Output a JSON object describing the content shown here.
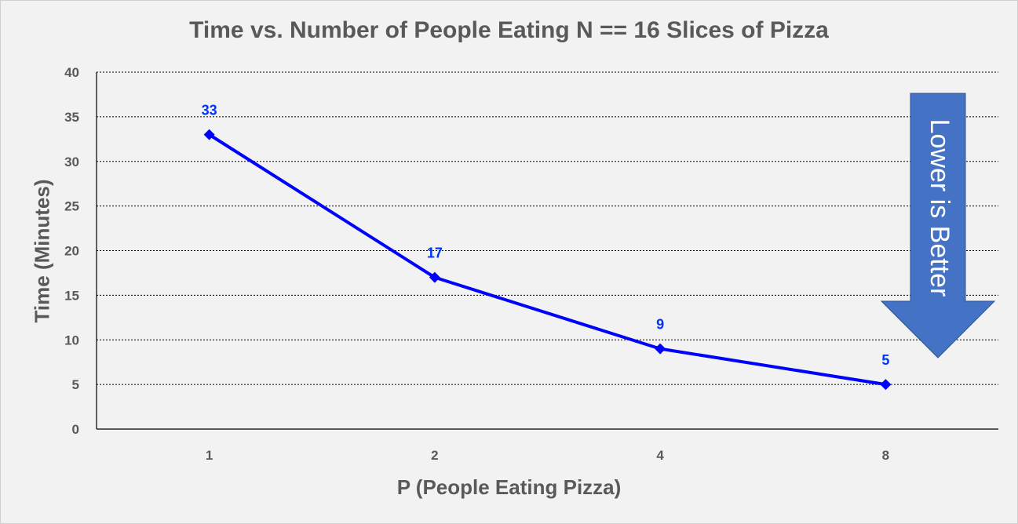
{
  "chart_data": {
    "type": "line",
    "title": "Time vs. Number of People Eating N == 16 Slices of Pizza",
    "xlabel": "P (People Eating Pizza)",
    "ylabel": "Time  (Minutes)",
    "categories": [
      "1",
      "2",
      "4",
      "8"
    ],
    "series": [
      {
        "values": [
          33,
          17,
          9,
          5
        ],
        "data_labels": [
          "33",
          "17",
          "9",
          "5"
        ]
      }
    ],
    "ylim": [
      0,
      40
    ],
    "yticks": [
      "0",
      "5",
      "10",
      "15",
      "20",
      "25",
      "30",
      "35",
      "40"
    ],
    "grid": true,
    "annotation": "Lower is Better",
    "colors": {
      "series": "#0000ff",
      "arrow": "#4472c4",
      "label": "#0033ff"
    }
  }
}
